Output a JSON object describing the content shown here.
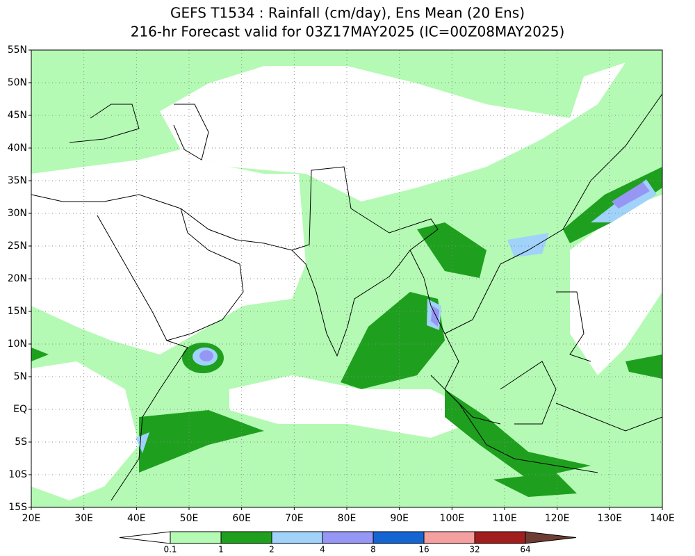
{
  "header": {
    "title": "GEFS T1534 : Rainfall (cm/day), Ens Mean (20 Ens)",
    "subtitle": "216-hr Forecast valid for 03Z17MAY2025 (IC=00Z08MAY2025)"
  },
  "map": {
    "lat_labels": [
      "55N",
      "50N",
      "45N",
      "40N",
      "35N",
      "30N",
      "25N",
      "20N",
      "15N",
      "10N",
      "5N",
      "EQ",
      "5S",
      "10S",
      "15S"
    ],
    "lon_labels": [
      "20E",
      "30E",
      "40E",
      "50E",
      "60E",
      "70E",
      "80E",
      "90E",
      "100E",
      "110E",
      "120E",
      "130E",
      "140E"
    ]
  },
  "colorbar": {
    "levels": [
      0.1,
      1,
      2,
      4,
      8,
      16,
      32,
      64
    ],
    "colors": [
      "#ffffff",
      "#b4fab4",
      "#1ea01e",
      "#a0d2fa",
      "#9696f5",
      "#1464d2",
      "#f5a0a0",
      "#a01e1e",
      "#6e3c32"
    ]
  }
}
